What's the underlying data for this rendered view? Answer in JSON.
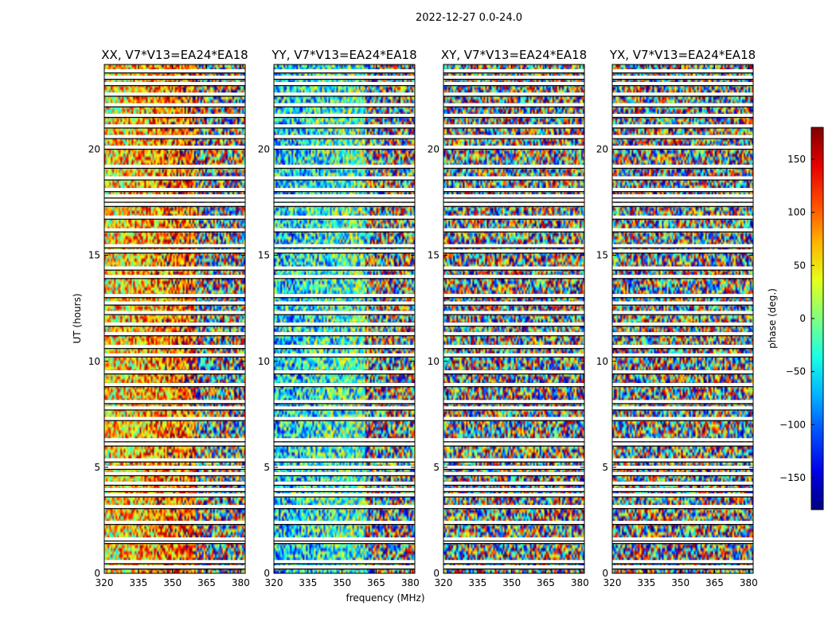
{
  "suptitle": "2022-12-27 0.0-24.0",
  "chart_data": {
    "type": "heatmap",
    "x_label": "frequency (MHz)",
    "y_label": "UT (hours)",
    "x_range": [
      320,
      382
    ],
    "y_range": [
      0,
      24
    ],
    "x_ticks": [
      320,
      335,
      350,
      365,
      380
    ],
    "y_ticks": [
      0,
      5,
      10,
      15,
      20
    ],
    "panels": [
      {
        "title": "XX, V7*V13=EA24*EA18",
        "pol": "XX"
      },
      {
        "title": "YY, V7*V13=EA24*EA18",
        "pol": "YY"
      },
      {
        "title": "XY, V7*V13=EA24*EA18",
        "pol": "XY"
      },
      {
        "title": "YX, V7*V13=EA24*EA18",
        "pol": "YX"
      }
    ],
    "colorbar": {
      "label": "phase (deg.)",
      "range": [
        -180,
        180
      ],
      "ticks": [
        150,
        100,
        50,
        0,
        -50,
        -100,
        -150
      ],
      "colormap": "jet"
    },
    "flagged_hours": [
      0.3,
      0.55,
      1.5,
      1.62,
      2.4,
      3.15,
      3.7,
      3.95,
      4.25,
      4.7,
      5.0,
      5.35,
      6.1,
      6.3,
      7.3,
      7.8,
      8.1,
      8.9,
      9.5,
      10.3,
      10.7,
      11.3,
      11.75,
      12.3,
      12.75,
      13.1,
      14.0,
      14.4,
      15.2,
      15.45,
      16.2,
      16.8,
      17.4,
      17.6,
      17.8,
      18.1,
      18.65,
      19.2,
      20.1,
      20.6,
      21.1,
      21.6,
      22.1,
      22.6,
      23.1,
      23.4,
      23.7
    ],
    "colors": {
      "axis": "#000000",
      "background": "#ffffff"
    }
  }
}
